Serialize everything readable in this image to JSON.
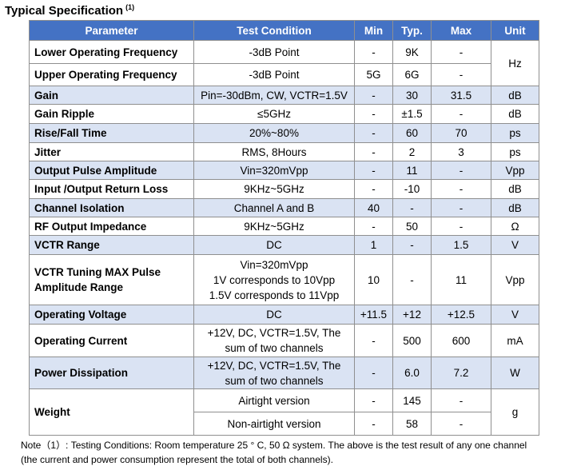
{
  "title": "Typical Specification",
  "title_footnote": "(1)",
  "headers": {
    "parameter": "Parameter",
    "condition": "Test Condition",
    "min": "Min",
    "typ": "Typ.",
    "max": "Max",
    "unit": "Unit"
  },
  "rows": [
    {
      "param": "Lower Operating Frequency",
      "cond": "-3dB Point",
      "min": "-",
      "typ": "9K",
      "max": "-"
    },
    {
      "param": "Upper Operating Frequency",
      "cond": "-3dB Point",
      "min": "5G",
      "typ": "6G",
      "max": "-"
    },
    {
      "param": "Gain",
      "cond": "Pin=-30dBm, CW, VCTR=1.5V",
      "min": "-",
      "typ": "30",
      "max": "31.5",
      "unit": "dB"
    },
    {
      "param": "Gain Ripple",
      "cond": "≤5GHz",
      "min": "-",
      "typ": "±1.5",
      "max": "-",
      "unit": "dB"
    },
    {
      "param": "Rise/Fall Time",
      "cond": "20%~80%",
      "min": "-",
      "typ": "60",
      "max": "70",
      "unit": "ps"
    },
    {
      "param": "Jitter",
      "cond": "RMS,  8Hours",
      "min": "-",
      "typ": "2",
      "max": "3",
      "unit": "ps"
    },
    {
      "param": "Output Pulse Amplitude",
      "cond": "Vin=320mVpp",
      "min": "-",
      "typ": "11",
      "max": "-",
      "unit": "Vpp"
    },
    {
      "param": "Input /Output Return Loss",
      "cond": "9KHz~5GHz",
      "min": "-",
      "typ": "-10",
      "max": "-",
      "unit": "dB"
    },
    {
      "param": "Channel Isolation",
      "cond": "Channel A and B",
      "min": "40",
      "typ": "-",
      "max": "-",
      "unit": "dB"
    },
    {
      "param": "RF Output Impedance",
      "cond": "9KHz~5GHz",
      "min": "-",
      "typ": "50",
      "max": "-",
      "unit": "Ω"
    },
    {
      "param": "VCTR Range",
      "cond": "DC",
      "min": "1",
      "typ": "-",
      "max": "1.5",
      "unit": "V"
    },
    {
      "param1": "VCTR Tuning MAX Pulse",
      "param2": "Amplitude Range",
      "cond1": "Vin=320mVpp",
      "cond2": "1V corresponds to 10Vpp",
      "cond3": "1.5V corresponds to 11Vpp",
      "min": "10",
      "typ": "-",
      "max": "11",
      "unit": "Vpp"
    },
    {
      "param": "Operating Voltage",
      "cond": "DC",
      "min": "+11.5",
      "typ": "+12",
      "max": "+12.5",
      "unit": "V"
    },
    {
      "param": "Operating Current",
      "cond1": "+12V, DC, VCTR=1.5V, The",
      "cond2": "sum of two channels",
      "min": "-",
      "typ": "500",
      "max": "600",
      "unit": "mA"
    },
    {
      "param": "Power Dissipation",
      "cond1": "+12V, DC, VCTR=1.5V, The",
      "cond2": "sum of two channels",
      "min": "-",
      "typ": "6.0",
      "max": "7.2",
      "unit": "W"
    },
    {
      "param": "Weight",
      "cond": "Airtight version",
      "min": "-",
      "typ": "145",
      "max": "-"
    },
    {
      "cond": "Non-airtight version",
      "min": "-",
      "typ": "58",
      "max": "-"
    }
  ],
  "freq_unit": "Hz",
  "weight_unit": "g",
  "note_line1": "Note（1）: Testing Conditions: Room temperature 25 ° C, 50 Ω system. The above is the test result of any one channel",
  "note_line2": "(the current and power consumption represent the total of both channels)."
}
